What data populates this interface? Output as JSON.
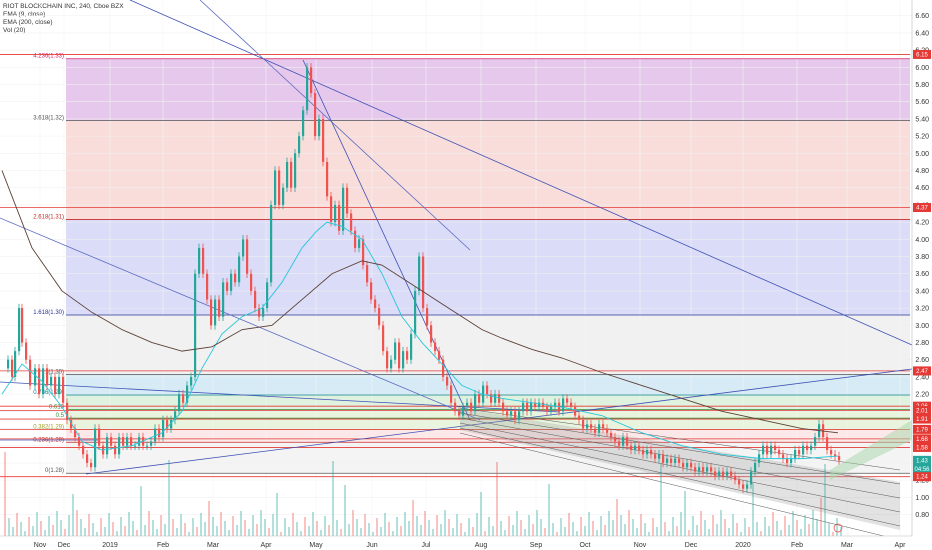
{
  "legend": {
    "title": "RIOT BLOCKCHAIN INC, 240, Cboe BZX",
    "ema9": "EMA (9, close)",
    "ema200": "EMA (200, close)",
    "vol": "Vol (20)"
  },
  "chart_data": {
    "type": "candlestick",
    "title": "RIOT BLOCKCHAIN INC, 240, Cboe BZX",
    "ylim": [
      0.55,
      6.75
    ],
    "y_ticks": [
      "6.60",
      "6.40",
      "6.20",
      "6.00",
      "5.80",
      "5.60",
      "5.40",
      "5.20",
      "5.00",
      "4.80",
      "4.60",
      "4.40",
      "4.20",
      "4.00",
      "3.80",
      "3.60",
      "3.40",
      "3.20",
      "3.00",
      "2.80",
      "2.60",
      "2.40",
      "2.20",
      "2.00",
      "1.80",
      "1.60",
      "1.40",
      "1.20",
      "1.00",
      "0.80"
    ],
    "x_labels": [
      "Nov",
      "Dec",
      "2019",
      "Feb",
      "Mar",
      "Apr",
      "May",
      "Jun",
      "Jul",
      "Aug",
      "Sep",
      "Oct",
      "Nov",
      "Dec",
      "2020",
      "Feb",
      "Mar",
      "Apr"
    ],
    "price_tags": [
      {
        "value": 6.15,
        "label": "6.15",
        "color": "#e53935"
      },
      {
        "value": 4.37,
        "label": "4.37",
        "color": "#e53935"
      },
      {
        "value": 2.47,
        "label": "2.47",
        "color": "#e53935"
      },
      {
        "value": 2.06,
        "label": "2.06",
        "color": "#e53935"
      },
      {
        "value": 2.01,
        "label": "2.01",
        "color": "#e53935"
      },
      {
        "value": 1.91,
        "label": "1.91",
        "color": "#e53935"
      },
      {
        "value": 1.79,
        "label": "1.79",
        "color": "#e53935"
      },
      {
        "value": 1.68,
        "label": "1.68",
        "color": "#e53935"
      },
      {
        "value": 1.58,
        "label": "1.58",
        "color": "#e53935"
      },
      {
        "value": 1.43,
        "label": "1.43",
        "color": "#26a69a"
      },
      {
        "value": 1.33,
        "label": "04:56",
        "color": "#26a69a"
      },
      {
        "value": 1.24,
        "label": "1.24",
        "color": "#e53935"
      }
    ],
    "fib_levels": [
      {
        "label": "4.236(1.33)",
        "value": 6.1,
        "color": "#d81b60"
      },
      {
        "label": "3.618(1.32)",
        "value": 5.38,
        "color": "#555"
      },
      {
        "label": "2.618(1.31)",
        "value": 4.23,
        "color": "#c62828"
      },
      {
        "label": "1.618(1.30)",
        "value": 3.12,
        "color": "#283593"
      },
      {
        "label": "1(1.30)",
        "value": 2.43,
        "color": "#555"
      },
      {
        "label": "0.786(1.29)",
        "value": 2.19,
        "color": "#00838f"
      },
      {
        "label": "0.618",
        "value": 2.02,
        "color": "#388e3c"
      },
      {
        "label": "0.5",
        "value": 1.92,
        "color": "#388e3c"
      },
      {
        "label": "0.382(1.29)",
        "value": 1.79,
        "color": "#9e9d24"
      },
      {
        "label": "0.236(1.29)",
        "value": 1.64,
        "color": "#c62828"
      },
      {
        "label": "0(1.28)",
        "value": 1.28,
        "color": "#555"
      }
    ],
    "price_path": [
      [
        0,
        2.5
      ],
      [
        5,
        2.6
      ],
      [
        9,
        2.4
      ],
      [
        12,
        2.7
      ],
      [
        16,
        3.2
      ],
      [
        19,
        2.8
      ],
      [
        23,
        2.6
      ],
      [
        27,
        2.3
      ],
      [
        32,
        2.5
      ],
      [
        36,
        2.2
      ],
      [
        40,
        2.5
      ],
      [
        44,
        2.3
      ],
      [
        48,
        2.4
      ],
      [
        52,
        2.2
      ],
      [
        56,
        2.4
      ],
      [
        60,
        2.1
      ],
      [
        64,
        1.9
      ],
      [
        68,
        1.8
      ],
      [
        72,
        1.7
      ],
      [
        76,
        1.6
      ],
      [
        80,
        1.5
      ],
      [
        84,
        1.4
      ],
      [
        88,
        1.35
      ],
      [
        92,
        1.8
      ],
      [
        96,
        1.6
      ],
      [
        100,
        1.5
      ],
      [
        104,
        1.7
      ],
      [
        108,
        1.6
      ],
      [
        112,
        1.5
      ],
      [
        116,
        1.7
      ],
      [
        120,
        1.6
      ],
      [
        124,
        1.7
      ],
      [
        128,
        1.6
      ],
      [
        132,
        1.6
      ],
      [
        136,
        1.7
      ],
      [
        140,
        1.6
      ],
      [
        144,
        1.6
      ],
      [
        148,
        1.65
      ],
      [
        152,
        1.8
      ],
      [
        156,
        1.7
      ],
      [
        160,
        1.9
      ],
      [
        164,
        1.8
      ],
      [
        168,
        1.9
      ],
      [
        172,
        2.0
      ],
      [
        176,
        2.2
      ],
      [
        180,
        2.1
      ],
      [
        184,
        2.3
      ],
      [
        188,
        2.4
      ],
      [
        192,
        3.6
      ],
      [
        196,
        3.9
      ],
      [
        200,
        3.6
      ],
      [
        204,
        3.3
      ],
      [
        208,
        3.0
      ],
      [
        212,
        3.3
      ],
      [
        216,
        3.1
      ],
      [
        220,
        3.5
      ],
      [
        224,
        3.4
      ],
      [
        228,
        3.6
      ],
      [
        232,
        3.5
      ],
      [
        236,
        3.8
      ],
      [
        240,
        4.0
      ],
      [
        244,
        3.6
      ],
      [
        248,
        3.4
      ],
      [
        252,
        3.2
      ],
      [
        256,
        3.1
      ],
      [
        260,
        3.2
      ],
      [
        264,
        3.5
      ],
      [
        268,
        4.4
      ],
      [
        272,
        4.8
      ],
      [
        276,
        4.4
      ],
      [
        280,
        4.6
      ],
      [
        284,
        4.9
      ],
      [
        288,
        4.6
      ],
      [
        292,
        5.0
      ],
      [
        296,
        5.2
      ],
      [
        300,
        5.5
      ],
      [
        304,
        6.0
      ],
      [
        308,
        5.7
      ],
      [
        312,
        5.2
      ],
      [
        316,
        5.4
      ],
      [
        320,
        4.9
      ],
      [
        324,
        4.5
      ],
      [
        328,
        4.2
      ],
      [
        332,
        4.4
      ],
      [
        336,
        4.1
      ],
      [
        340,
        4.6
      ],
      [
        344,
        4.3
      ],
      [
        348,
        4.1
      ],
      [
        352,
        3.9
      ],
      [
        356,
        4.0
      ],
      [
        360,
        3.7
      ],
      [
        364,
        3.5
      ],
      [
        368,
        3.3
      ],
      [
        372,
        3.2
      ],
      [
        376,
        3.0
      ],
      [
        380,
        2.7
      ],
      [
        384,
        2.5
      ],
      [
        388,
        2.6
      ],
      [
        392,
        2.8
      ],
      [
        396,
        2.5
      ],
      [
        400,
        2.7
      ],
      [
        404,
        2.6
      ],
      [
        408,
        2.9
      ],
      [
        412,
        3.4
      ],
      [
        416,
        3.8
      ],
      [
        420,
        3.2
      ],
      [
        424,
        3.0
      ],
      [
        428,
        2.8
      ],
      [
        432,
        2.7
      ],
      [
        436,
        2.6
      ],
      [
        440,
        2.4
      ],
      [
        444,
        2.3
      ],
      [
        448,
        2.1
      ],
      [
        452,
        2.0
      ],
      [
        456,
        1.95
      ],
      [
        460,
        2.05
      ],
      [
        464,
        2.1
      ],
      [
        468,
        2.0
      ],
      [
        472,
        2.2
      ],
      [
        476,
        2.1
      ],
      [
        480,
        2.3
      ],
      [
        484,
        2.2
      ],
      [
        488,
        2.1
      ],
      [
        492,
        2.2
      ],
      [
        496,
        2.1
      ],
      [
        500,
        2.0
      ],
      [
        504,
        1.95
      ],
      [
        508,
        2.0
      ],
      [
        512,
        1.9
      ],
      [
        516,
        2.0
      ],
      [
        520,
        2.1
      ],
      [
        524,
        2.0
      ],
      [
        528,
        2.1
      ],
      [
        532,
        2.05
      ],
      [
        536,
        2.1
      ],
      [
        540,
        2.05
      ],
      [
        544,
        2.0
      ],
      [
        548,
        2.05
      ],
      [
        552,
        2.1
      ],
      [
        556,
        2.0
      ],
      [
        560,
        2.15
      ],
      [
        564,
        2.1
      ],
      [
        568,
        2.05
      ],
      [
        572,
        1.95
      ],
      [
        576,
        1.9
      ],
      [
        580,
        1.8
      ],
      [
        584,
        1.85
      ],
      [
        588,
        1.8
      ],
      [
        592,
        1.75
      ],
      [
        596,
        1.85
      ],
      [
        600,
        1.8
      ],
      [
        604,
        1.75
      ],
      [
        608,
        1.7
      ],
      [
        612,
        1.65
      ],
      [
        616,
        1.6
      ],
      [
        620,
        1.7
      ],
      [
        624,
        1.6
      ],
      [
        628,
        1.55
      ],
      [
        632,
        1.6
      ],
      [
        636,
        1.55
      ],
      [
        640,
        1.5
      ],
      [
        644,
        1.55
      ],
      [
        648,
        1.5
      ],
      [
        652,
        1.45
      ],
      [
        656,
        1.5
      ],
      [
        660,
        1.4
      ],
      [
        664,
        1.45
      ],
      [
        668,
        1.4
      ],
      [
        672,
        1.45
      ],
      [
        676,
        1.4
      ],
      [
        680,
        1.35
      ],
      [
        684,
        1.4
      ],
      [
        688,
        1.35
      ],
      [
        692,
        1.3
      ],
      [
        696,
        1.35
      ],
      [
        700,
        1.3
      ],
      [
        704,
        1.35
      ],
      [
        708,
        1.3
      ],
      [
        712,
        1.25
      ],
      [
        716,
        1.3
      ],
      [
        720,
        1.25
      ],
      [
        724,
        1.3
      ],
      [
        728,
        1.25
      ],
      [
        732,
        1.2
      ],
      [
        736,
        1.15
      ],
      [
        740,
        1.1
      ],
      [
        744,
        1.15
      ],
      [
        748,
        1.3
      ],
      [
        752,
        1.4
      ],
      [
        756,
        1.5
      ],
      [
        760,
        1.6
      ],
      [
        764,
        1.5
      ],
      [
        768,
        1.6
      ],
      [
        772,
        1.55
      ],
      [
        776,
        1.5
      ],
      [
        780,
        1.45
      ],
      [
        784,
        1.4
      ],
      [
        788,
        1.45
      ],
      [
        792,
        1.55
      ],
      [
        796,
        1.5
      ],
      [
        800,
        1.6
      ],
      [
        804,
        1.55
      ],
      [
        808,
        1.6
      ],
      [
        812,
        1.7
      ],
      [
        816,
        1.85
      ],
      [
        820,
        1.7
      ],
      [
        824,
        1.55
      ],
      [
        828,
        1.5
      ],
      [
        832,
        1.48
      ],
      [
        836,
        1.43
      ]
    ],
    "ema_short": [
      [
        0,
        2.2
      ],
      [
        20,
        2.55
      ],
      [
        40,
        2.35
      ],
      [
        60,
        2.05
      ],
      [
        80,
        1.65
      ],
      [
        100,
        1.55
      ],
      [
        130,
        1.6
      ],
      [
        160,
        1.75
      ],
      [
        180,
        2.0
      ],
      [
        200,
        2.5
      ],
      [
        220,
        2.9
      ],
      [
        240,
        3.1
      ],
      [
        260,
        3.2
      ],
      [
        280,
        3.5
      ],
      [
        300,
        3.9
      ],
      [
        315,
        4.1
      ],
      [
        325,
        4.2
      ],
      [
        340,
        4.15
      ],
      [
        360,
        4.0
      ],
      [
        380,
        3.6
      ],
      [
        400,
        3.1
      ],
      [
        420,
        2.8
      ],
      [
        440,
        2.55
      ],
      [
        460,
        2.3
      ],
      [
        480,
        2.2
      ],
      [
        500,
        2.15
      ],
      [
        530,
        2.1
      ],
      [
        560,
        2.05
      ],
      [
        600,
        1.95
      ],
      [
        640,
        1.75
      ],
      [
        680,
        1.6
      ],
      [
        720,
        1.5
      ],
      [
        760,
        1.45
      ],
      [
        800,
        1.45
      ],
      [
        836,
        1.48
      ]
    ],
    "ema_long": [
      [
        0,
        4.8
      ],
      [
        30,
        3.9
      ],
      [
        60,
        3.4
      ],
      [
        90,
        3.15
      ],
      [
        120,
        2.95
      ],
      [
        150,
        2.8
      ],
      [
        180,
        2.7
      ],
      [
        210,
        2.75
      ],
      [
        240,
        2.95
      ],
      [
        270,
        3.0
      ],
      [
        300,
        3.3
      ],
      [
        330,
        3.6
      ],
      [
        360,
        3.75
      ],
      [
        380,
        3.7
      ],
      [
        400,
        3.55
      ],
      [
        420,
        3.4
      ],
      [
        440,
        3.25
      ],
      [
        460,
        3.1
      ],
      [
        480,
        2.95
      ],
      [
        500,
        2.85
      ],
      [
        530,
        2.72
      ],
      [
        560,
        2.62
      ],
      [
        600,
        2.45
      ],
      [
        640,
        2.3
      ],
      [
        680,
        2.15
      ],
      [
        720,
        2.0
      ],
      [
        760,
        1.9
      ],
      [
        800,
        1.8
      ],
      [
        836,
        1.75
      ]
    ]
  }
}
